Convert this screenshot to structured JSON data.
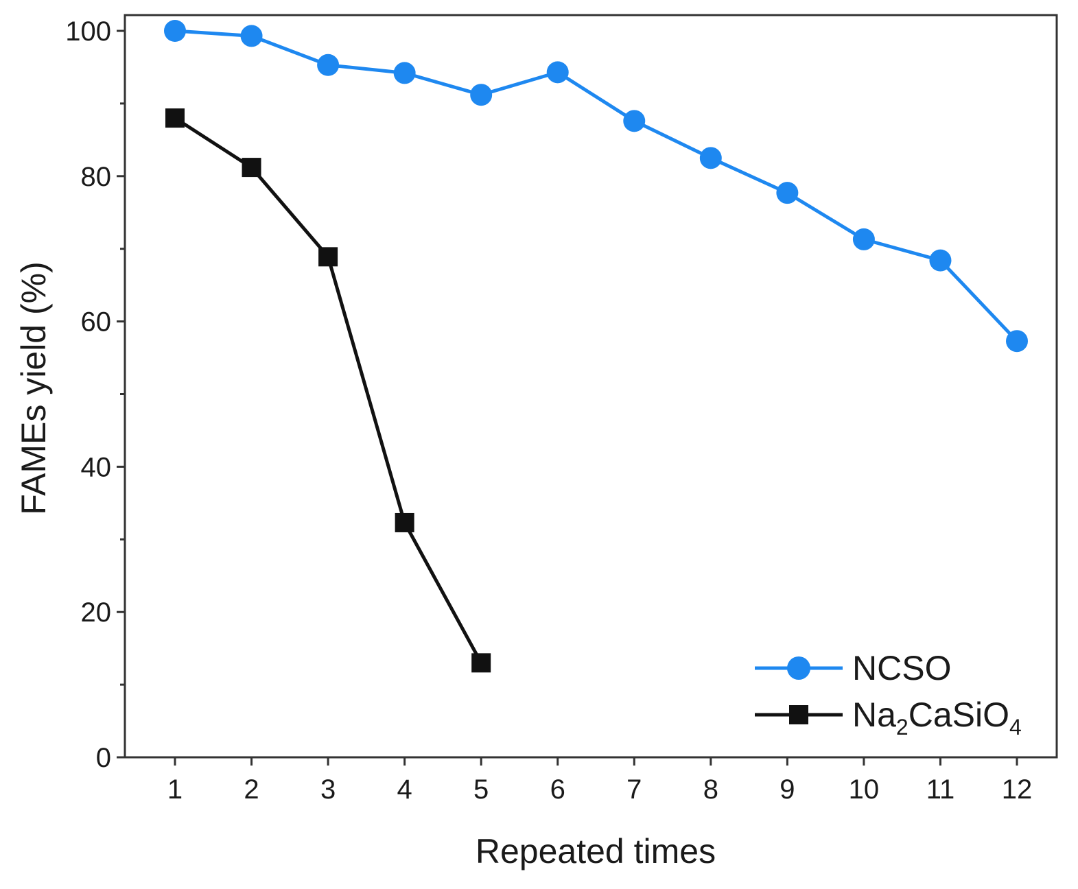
{
  "chart_data": {
    "type": "line",
    "title": "",
    "xlabel": "Repeated times",
    "ylabel": "FAMEs yield (%)",
    "xlim": [
      0.5,
      12.5
    ],
    "ylim": [
      0,
      100
    ],
    "x_ticks": [
      1,
      2,
      3,
      4,
      5,
      6,
      7,
      8,
      9,
      10,
      11,
      12
    ],
    "y_ticks": [
      0,
      20,
      40,
      60,
      80,
      100
    ],
    "grid": false,
    "legend_position": "bottom-right",
    "series": [
      {
        "name": "NCSO",
        "color": "#1e88f0",
        "marker": "circle",
        "x": [
          1,
          2,
          3,
          4,
          5,
          6,
          7,
          8,
          9,
          10,
          11,
          12
        ],
        "values": [
          100,
          99.3,
          95.3,
          94.2,
          91.2,
          94.3,
          87.6,
          82.5,
          77.7,
          71.3,
          68.4,
          57.3
        ]
      },
      {
        "name": "Na2CaSiO4",
        "color": "#111111",
        "marker": "square",
        "x": [
          1,
          2,
          3,
          4,
          5
        ],
        "values": [
          88.0,
          81.2,
          68.9,
          32.3,
          13.0
        ]
      }
    ],
    "legend": {
      "ncso_label": "NCSO",
      "na2casio4_parts": {
        "na": "Na",
        "sub2": "2",
        "casio": "CaSiO",
        "sub4": "4"
      }
    }
  }
}
